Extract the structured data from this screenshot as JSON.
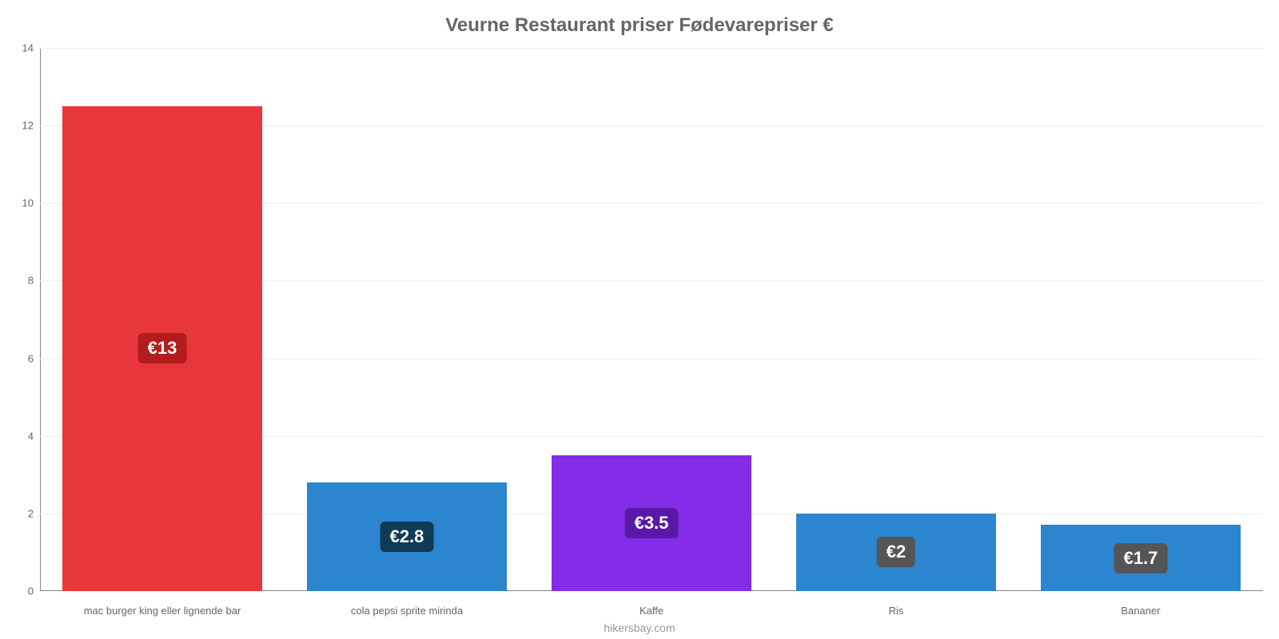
{
  "chart": {
    "type": "bar",
    "title": "Veurne Restaurant priser Fødevarepriser €",
    "title_fontsize": 24,
    "title_color": "#666666",
    "subtitle": "hikersbay.com",
    "subtitle_fontsize": 14,
    "subtitle_color": "#999999",
    "background_color": "#ffffff",
    "grid_color": "#eeeeee",
    "axis_color": "#888888",
    "categories": [
      "mac burger king eller lignende bar",
      "cola pepsi sprite mirinda",
      "Kaffe",
      "Ris",
      "Bananer"
    ],
    "values": [
      12.5,
      2.8,
      3.5,
      2.0,
      1.7
    ],
    "value_labels": [
      "€13",
      "€2.8",
      "€3.5",
      "€2",
      "€1.7"
    ],
    "bar_colors": [
      "#e8373b",
      "#2c85cf",
      "#852ce8",
      "#2c85cf",
      "#2c85cf"
    ],
    "value_label_bg": [
      "#b31c1c",
      "#0f3a58",
      "#5a18a8",
      "#555555",
      "#555555"
    ],
    "value_label_text_color": "#ffffff",
    "ylim": [
      0,
      14
    ],
    "yticks": [
      0,
      2,
      4,
      6,
      8,
      10,
      12,
      14
    ],
    "bar_width_ratio": 0.82,
    "label_fontsize": 13,
    "label_color": "#666666",
    "value_label_fontsize": 22
  }
}
